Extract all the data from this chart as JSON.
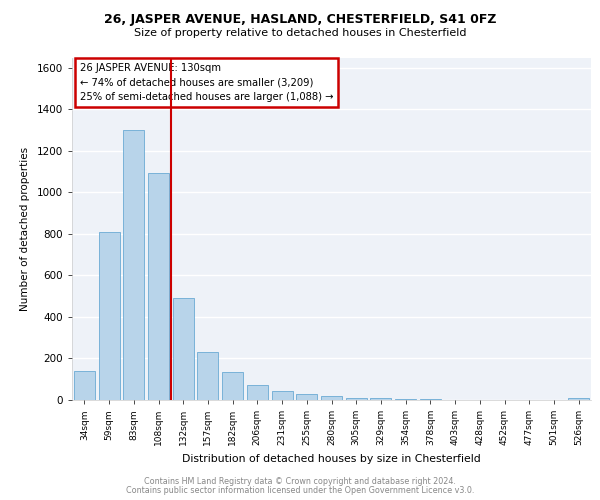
{
  "title1": "26, JASPER AVENUE, HASLAND, CHESTERFIELD, S41 0FZ",
  "title2": "Size of property relative to detached houses in Chesterfield",
  "xlabel": "Distribution of detached houses by size in Chesterfield",
  "ylabel": "Number of detached properties",
  "categories": [
    "34sqm",
    "59sqm",
    "83sqm",
    "108sqm",
    "132sqm",
    "157sqm",
    "182sqm",
    "206sqm",
    "231sqm",
    "255sqm",
    "280sqm",
    "305sqm",
    "329sqm",
    "354sqm",
    "378sqm",
    "403sqm",
    "428sqm",
    "452sqm",
    "477sqm",
    "501sqm",
    "526sqm"
  ],
  "values": [
    140,
    810,
    1300,
    1095,
    490,
    230,
    135,
    70,
    45,
    30,
    20,
    10,
    8,
    5,
    3,
    2,
    1,
    1,
    1,
    1,
    10
  ],
  "bar_color": "#b8d4ea",
  "bar_edge_color": "#6aaad4",
  "annotation_text_line1": "26 JASPER AVENUE: 130sqm",
  "annotation_text_line2": "← 74% of detached houses are smaller (3,209)",
  "annotation_text_line3": "25% of semi-detached houses are larger (1,088) →",
  "annotation_box_color": "#ffffff",
  "annotation_box_edge": "#cc0000",
  "vline_color": "#cc0000",
  "vline_x": 3.5,
  "ylim": [
    0,
    1650
  ],
  "yticks": [
    0,
    200,
    400,
    600,
    800,
    1000,
    1200,
    1400,
    1600
  ],
  "footer1": "Contains HM Land Registry data © Crown copyright and database right 2024.",
  "footer2": "Contains public sector information licensed under the Open Government Licence v3.0.",
  "plot_background": "#eef2f8"
}
